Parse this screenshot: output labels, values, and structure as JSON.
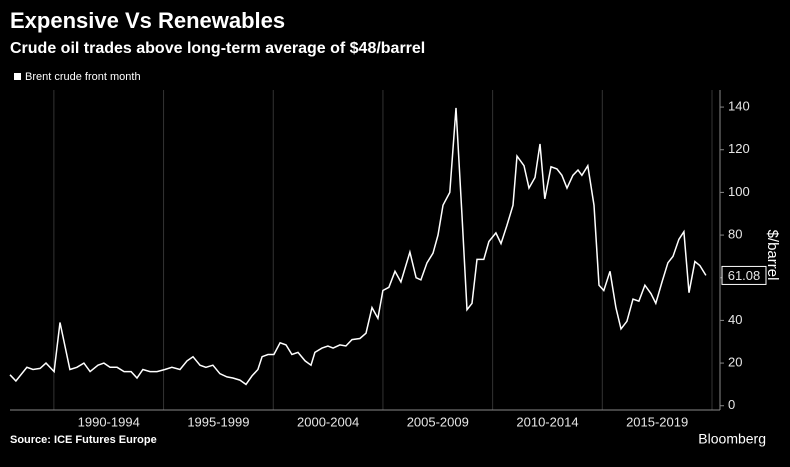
{
  "chart_data": {
    "type": "line",
    "title": "Expensive Vs Renewables",
    "subtitle": "Crude oil trades above long-term average of $48/barrel",
    "y_label": "$/barrel",
    "source": "Source: ICE Futures Europe",
    "brand": "Bloomberg",
    "grid": false,
    "legend": "top-left",
    "xlim": [
      1988,
      2020
    ],
    "xgrid": [
      1990,
      1995,
      2000,
      2005,
      2010,
      2015,
      2020
    ],
    "xticks": [
      {
        "value": 1992.5,
        "label": "1990-1994"
      },
      {
        "value": 1997.5,
        "label": "1995-1999"
      },
      {
        "value": 2002.5,
        "label": "2000-2004"
      },
      {
        "value": 2007.5,
        "label": "2005-2009"
      },
      {
        "value": 2012.5,
        "label": "2010-2014"
      },
      {
        "value": 2017.5,
        "label": "2015-2019"
      }
    ],
    "ylim": [
      -2,
      148
    ],
    "yticks": [
      0,
      20,
      40,
      60,
      80,
      100,
      120,
      140
    ],
    "x": [
      1988.0,
      1988.27,
      1988.77,
      1989.05,
      1989.37,
      1989.64,
      1990.01,
      1990.28,
      1990.73,
      1991.05,
      1991.37,
      1991.65,
      1992.01,
      1992.28,
      1992.56,
      1992.88,
      1993.2,
      1993.52,
      1993.79,
      1994.06,
      1994.38,
      1994.7,
      1995.06,
      1995.38,
      1995.75,
      1996.07,
      1996.34,
      1996.66,
      1996.93,
      1997.25,
      1997.57,
      1997.89,
      1998.16,
      1998.48,
      1998.76,
      1999.03,
      1999.3,
      1999.49,
      1999.76,
      2000.03,
      2000.31,
      2000.58,
      2000.85,
      2001.13,
      2001.45,
      2001.72,
      2001.9,
      2002.22,
      2002.49,
      2002.73,
      2003.04,
      2003.31,
      2003.59,
      2003.95,
      2004.23,
      2004.5,
      2004.77,
      2005.0,
      2005.27,
      2005.55,
      2005.82,
      2006.23,
      2006.51,
      2006.73,
      2007.01,
      2007.28,
      2007.51,
      2007.74,
      2008.05,
      2008.33,
      2008.6,
      2008.83,
      2009.06,
      2009.29,
      2009.6,
      2009.83,
      2010.15,
      2010.38,
      2010.65,
      2010.93,
      2011.11,
      2011.43,
      2011.66,
      2011.93,
      2012.16,
      2012.38,
      2012.66,
      2012.93,
      2013.16,
      2013.39,
      2013.66,
      2013.89,
      2014.07,
      2014.34,
      2014.62,
      2014.85,
      2015.07,
      2015.35,
      2015.62,
      2015.85,
      2016.12,
      2016.4,
      2016.67,
      2016.94,
      2017.22,
      2017.44,
      2017.72,
      2017.99,
      2018.22,
      2018.49,
      2018.72,
      2018.95,
      2019.22,
      2019.45,
      2019.72
    ],
    "series": [
      {
        "name": "Brent crude front month",
        "color": "#ffffff",
        "values": [
          14.5,
          11.6,
          18,
          17,
          17.5,
          20,
          16,
          39,
          17,
          18,
          20,
          16,
          19,
          20,
          18,
          18,
          16,
          16,
          13,
          17,
          16,
          16,
          17,
          18,
          17,
          21,
          23,
          19,
          18,
          19,
          15,
          13.5,
          13,
          12,
          10,
          14,
          17,
          23,
          24,
          24,
          29.5,
          28.5,
          24,
          25,
          21,
          19,
          25,
          27,
          28,
          27,
          28.5,
          28,
          31,
          31.5,
          34,
          46,
          41,
          54,
          55.5,
          63,
          58,
          72,
          60,
          59,
          67,
          71.5,
          80,
          94,
          100,
          139.6,
          90,
          45,
          48,
          68.6,
          68.6,
          77,
          81,
          76,
          84.5,
          94,
          117,
          112.5,
          102,
          107,
          122.7,
          97,
          112,
          111,
          108,
          102,
          108,
          110.5,
          108,
          112.5,
          94,
          56.5,
          54,
          63,
          46,
          36,
          39.6,
          50,
          49,
          56.5,
          52.5,
          48,
          58,
          67,
          70,
          78,
          81.6,
          53,
          67.6,
          65.7,
          61.08
        ]
      }
    ]
  }
}
